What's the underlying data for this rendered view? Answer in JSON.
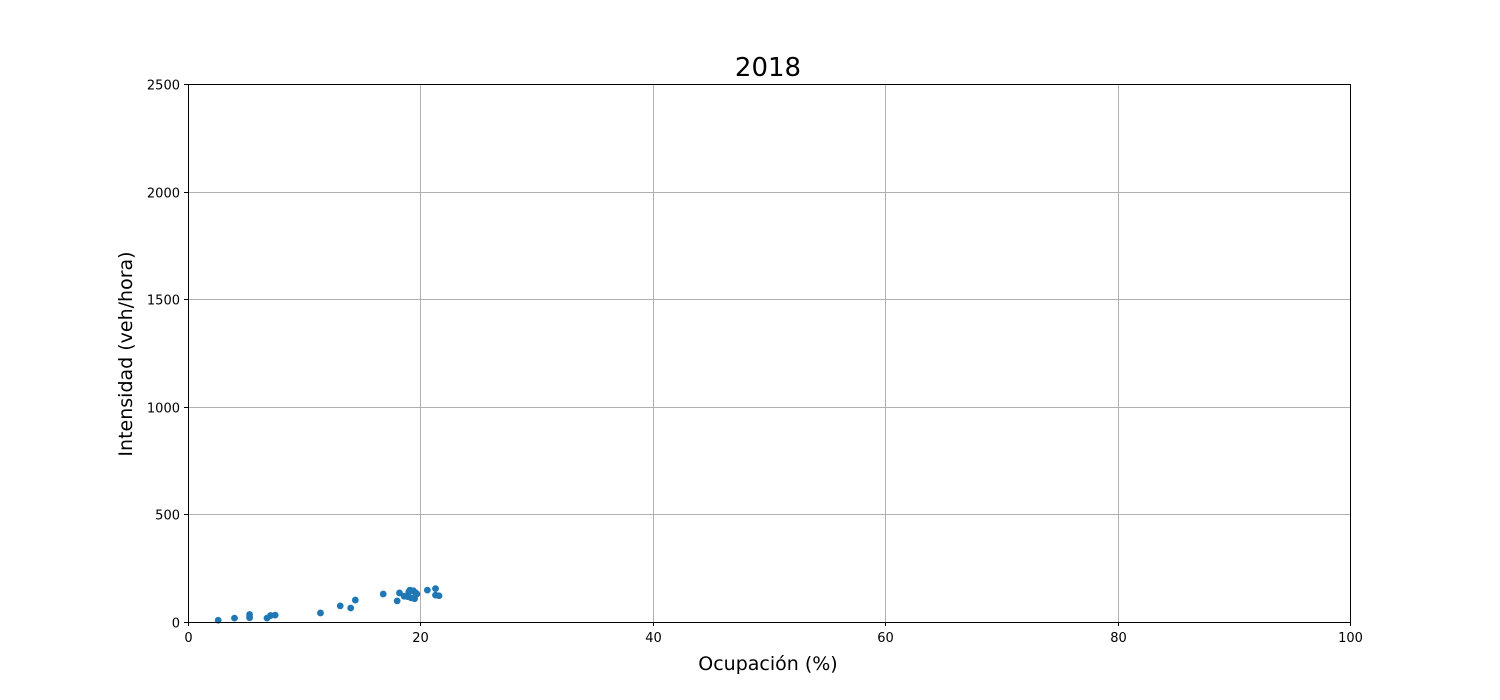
{
  "chart_data": {
    "type": "scatter",
    "title": "2018",
    "xlabel": "Ocupación (%)",
    "ylabel": "Intensidad (veh/hora)",
    "xlim": [
      0,
      100
    ],
    "ylim": [
      0,
      2500
    ],
    "xticks": [
      0,
      20,
      40,
      60,
      80,
      100
    ],
    "yticks": [
      0,
      500,
      1000,
      1500,
      2000,
      2500
    ],
    "xtick_labels": [
      "0",
      "20",
      "40",
      "60",
      "80",
      "100"
    ],
    "ytick_labels": [
      "0",
      "500",
      "1000",
      "1500",
      "2000",
      "2500"
    ],
    "grid": true,
    "color": "#1f77b4",
    "points": [
      [
        2.6,
        8
      ],
      [
        4.0,
        18
      ],
      [
        5.3,
        35
      ],
      [
        5.3,
        20
      ],
      [
        6.8,
        18
      ],
      [
        7.1,
        30
      ],
      [
        7.5,
        32
      ],
      [
        11.4,
        42
      ],
      [
        13.1,
        75
      ],
      [
        14.0,
        65
      ],
      [
        14.4,
        102
      ],
      [
        16.8,
        130
      ],
      [
        18.0,
        98
      ],
      [
        18.2,
        135
      ],
      [
        18.6,
        120
      ],
      [
        18.9,
        118
      ],
      [
        19.0,
        140
      ],
      [
        19.1,
        148
      ],
      [
        19.2,
        112
      ],
      [
        19.4,
        145
      ],
      [
        19.5,
        108
      ],
      [
        19.6,
        135
      ],
      [
        19.7,
        130
      ],
      [
        20.6,
        148
      ],
      [
        21.3,
        155
      ],
      [
        21.3,
        125
      ],
      [
        21.6,
        122
      ]
    ]
  }
}
